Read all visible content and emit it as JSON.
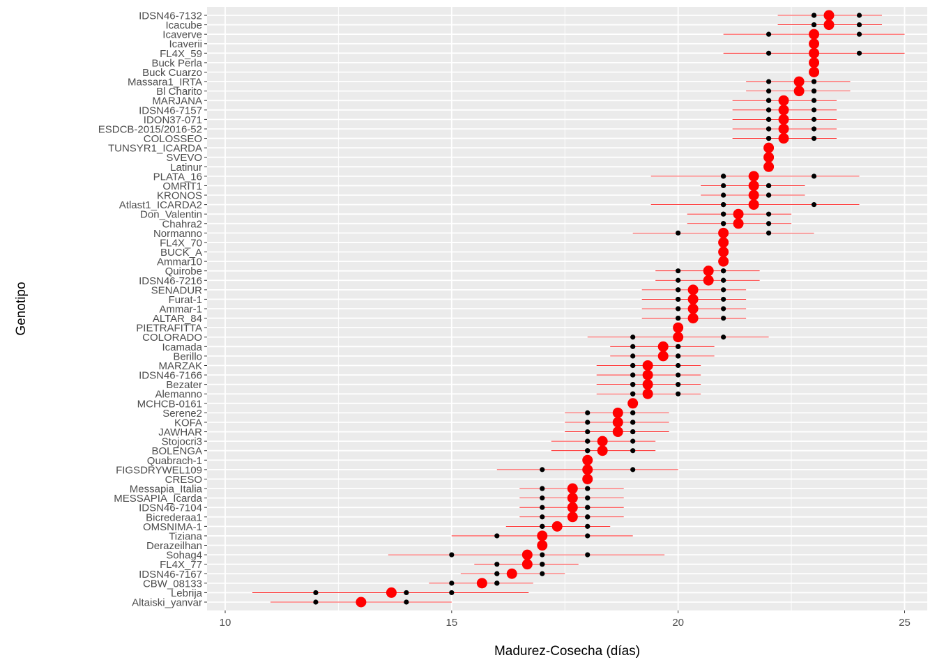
{
  "chart_data": {
    "type": "scatter",
    "xlabel": "Madurez-Cosecha (días)",
    "ylabel": "Genotipo",
    "xlim": [
      9.6,
      25.5
    ],
    "x_ticks": [
      10,
      15,
      20,
      25
    ],
    "grid": true,
    "colors": {
      "panel": "#ebebeb",
      "grid": "#ffffff",
      "mean": "#ff0000",
      "obs": "#000000",
      "errorbar": "#ff0000"
    },
    "series": [
      {
        "name": "",
        "points": [
          {
            "genotype": "IDSN46-7132",
            "mean": 23.33,
            "lo": 22.2,
            "hi": 24.5,
            "obs": [
              23,
              23,
              24
            ]
          },
          {
            "genotype": "Icacube",
            "mean": 23.33,
            "lo": 22.2,
            "hi": 24.5,
            "obs": [
              23,
              23,
              24
            ]
          },
          {
            "genotype": "Icaverve",
            "mean": 23.0,
            "lo": 21.0,
            "hi": 25.0,
            "obs": [
              22,
              23,
              24
            ]
          },
          {
            "genotype": "Icaverii",
            "mean": 23.0,
            "lo": 23.0,
            "hi": 23.0,
            "obs": [
              23,
              23,
              23
            ]
          },
          {
            "genotype": "FL4X_59",
            "mean": 23.0,
            "lo": 21.0,
            "hi": 25.0,
            "obs": [
              22,
              23,
              24
            ]
          },
          {
            "genotype": "Buck Perla",
            "mean": 23.0,
            "lo": 23.0,
            "hi": 23.0,
            "obs": [
              23,
              23,
              23
            ]
          },
          {
            "genotype": "Buck Cuarzo",
            "mean": 23.0,
            "lo": 23.0,
            "hi": 23.0,
            "obs": [
              23,
              23,
              23
            ]
          },
          {
            "genotype": "Massara1_IRTA",
            "mean": 22.67,
            "lo": 21.5,
            "hi": 23.8,
            "obs": [
              22,
              23,
              23
            ]
          },
          {
            "genotype": "Bl Charito",
            "mean": 22.67,
            "lo": 21.5,
            "hi": 23.8,
            "obs": [
              22,
              23,
              23
            ]
          },
          {
            "genotype": "MARJANA",
            "mean": 22.33,
            "lo": 21.2,
            "hi": 23.5,
            "obs": [
              22,
              22,
              23
            ]
          },
          {
            "genotype": "IDSN46-7157",
            "mean": 22.33,
            "lo": 21.2,
            "hi": 23.5,
            "obs": [
              22,
              22,
              23
            ]
          },
          {
            "genotype": "IDON37-071",
            "mean": 22.33,
            "lo": 21.2,
            "hi": 23.5,
            "obs": [
              22,
              22,
              23
            ]
          },
          {
            "genotype": "ESDCB-2015/2016-52",
            "mean": 22.33,
            "lo": 21.2,
            "hi": 23.5,
            "obs": [
              22,
              22,
              23
            ]
          },
          {
            "genotype": "COLOSSEO",
            "mean": 22.33,
            "lo": 21.2,
            "hi": 23.5,
            "obs": [
              22,
              22,
              23
            ]
          },
          {
            "genotype": "TUNSYR1_ICARDA",
            "mean": 22.0,
            "lo": 22.0,
            "hi": 22.0,
            "obs": [
              22,
              22,
              22
            ]
          },
          {
            "genotype": "SVEVO",
            "mean": 22.0,
            "lo": 22.0,
            "hi": 22.0,
            "obs": [
              22,
              22,
              22
            ]
          },
          {
            "genotype": "Latinur",
            "mean": 22.0,
            "lo": 22.0,
            "hi": 22.0,
            "obs": [
              22,
              22,
              22
            ]
          },
          {
            "genotype": "PLATA_16",
            "mean": 21.67,
            "lo": 19.4,
            "hi": 24.0,
            "obs": [
              21,
              21,
              23
            ]
          },
          {
            "genotype": "OMRIT1",
            "mean": 21.67,
            "lo": 20.5,
            "hi": 22.8,
            "obs": [
              21,
              22,
              22
            ]
          },
          {
            "genotype": "KRONOS",
            "mean": 21.67,
            "lo": 20.5,
            "hi": 22.8,
            "obs": [
              21,
              22,
              22
            ]
          },
          {
            "genotype": "Atlast1_ICARDA2",
            "mean": 21.67,
            "lo": 19.4,
            "hi": 24.0,
            "obs": [
              21,
              21,
              23
            ]
          },
          {
            "genotype": "Don_Valentin",
            "mean": 21.33,
            "lo": 20.2,
            "hi": 22.5,
            "obs": [
              21,
              21,
              22
            ]
          },
          {
            "genotype": "Chahra2",
            "mean": 21.33,
            "lo": 20.2,
            "hi": 22.5,
            "obs": [
              21,
              21,
              22
            ]
          },
          {
            "genotype": "Normanno",
            "mean": 21.0,
            "lo": 19.0,
            "hi": 23.0,
            "obs": [
              20,
              21,
              22
            ]
          },
          {
            "genotype": "FL4X_70",
            "mean": 21.0,
            "lo": 21.0,
            "hi": 21.0,
            "obs": [
              21,
              21,
              21
            ]
          },
          {
            "genotype": "BUCK_A",
            "mean": 21.0,
            "lo": 21.0,
            "hi": 21.0,
            "obs": [
              21,
              21,
              21
            ]
          },
          {
            "genotype": "Ammar10",
            "mean": 21.0,
            "lo": 21.0,
            "hi": 21.0,
            "obs": [
              21,
              21,
              21
            ]
          },
          {
            "genotype": "Quirobe",
            "mean": 20.67,
            "lo": 19.5,
            "hi": 21.8,
            "obs": [
              20,
              21,
              21
            ]
          },
          {
            "genotype": "IDSN46-7216",
            "mean": 20.67,
            "lo": 19.5,
            "hi": 21.8,
            "obs": [
              20,
              21,
              21
            ]
          },
          {
            "genotype": "SENADUR",
            "mean": 20.33,
            "lo": 19.2,
            "hi": 21.5,
            "obs": [
              20,
              20,
              21
            ]
          },
          {
            "genotype": "Furat-1",
            "mean": 20.33,
            "lo": 19.2,
            "hi": 21.5,
            "obs": [
              20,
              20,
              21
            ]
          },
          {
            "genotype": "Ammar-1",
            "mean": 20.33,
            "lo": 19.2,
            "hi": 21.5,
            "obs": [
              20,
              20,
              21
            ]
          },
          {
            "genotype": "ALTAR_84",
            "mean": 20.33,
            "lo": 19.2,
            "hi": 21.5,
            "obs": [
              20,
              20,
              21
            ]
          },
          {
            "genotype": "PIETRAFITTA",
            "mean": 20.0,
            "lo": 20.0,
            "hi": 20.0,
            "obs": [
              20,
              20,
              20
            ]
          },
          {
            "genotype": "COLORADO",
            "mean": 20.0,
            "lo": 18.0,
            "hi": 22.0,
            "obs": [
              19,
              20,
              21
            ]
          },
          {
            "genotype": "Icamada",
            "mean": 19.67,
            "lo": 18.5,
            "hi": 20.8,
            "obs": [
              19,
              20,
              20
            ]
          },
          {
            "genotype": "Berillo",
            "mean": 19.67,
            "lo": 18.5,
            "hi": 20.8,
            "obs": [
              19,
              20,
              20
            ]
          },
          {
            "genotype": "MARZAK",
            "mean": 19.33,
            "lo": 18.2,
            "hi": 20.5,
            "obs": [
              19,
              19,
              20
            ]
          },
          {
            "genotype": "IDSN46-7166",
            "mean": 19.33,
            "lo": 18.2,
            "hi": 20.5,
            "obs": [
              19,
              19,
              20
            ]
          },
          {
            "genotype": "Bezater",
            "mean": 19.33,
            "lo": 18.2,
            "hi": 20.5,
            "obs": [
              19,
              19,
              20
            ]
          },
          {
            "genotype": "Alemanno",
            "mean": 19.33,
            "lo": 18.2,
            "hi": 20.5,
            "obs": [
              19,
              19,
              20
            ]
          },
          {
            "genotype": "MCHCB-0161",
            "mean": 19.0,
            "lo": 19.0,
            "hi": 19.0,
            "obs": [
              19,
              19,
              19
            ]
          },
          {
            "genotype": "Serene2",
            "mean": 18.67,
            "lo": 17.5,
            "hi": 19.8,
            "obs": [
              18,
              19,
              19
            ]
          },
          {
            "genotype": "KOFA",
            "mean": 18.67,
            "lo": 17.5,
            "hi": 19.8,
            "obs": [
              18,
              19,
              19
            ]
          },
          {
            "genotype": "JAWHAR",
            "mean": 18.67,
            "lo": 17.5,
            "hi": 19.8,
            "obs": [
              18,
              19,
              19
            ]
          },
          {
            "genotype": "Stojocri3",
            "mean": 18.33,
            "lo": 17.2,
            "hi": 19.5,
            "obs": [
              18,
              18,
              19
            ]
          },
          {
            "genotype": "BOLENGA",
            "mean": 18.33,
            "lo": 17.2,
            "hi": 19.5,
            "obs": [
              18,
              18,
              19
            ]
          },
          {
            "genotype": "Quabrach-1",
            "mean": 18.0,
            "lo": 18.0,
            "hi": 18.0,
            "obs": [
              18,
              18,
              18
            ]
          },
          {
            "genotype": "FIGSDRYWEL109",
            "mean": 18.0,
            "lo": 16.0,
            "hi": 20.0,
            "obs": [
              17,
              18,
              19
            ]
          },
          {
            "genotype": "CRESO",
            "mean": 18.0,
            "lo": 18.0,
            "hi": 18.0,
            "obs": [
              18,
              18,
              18
            ]
          },
          {
            "genotype": "Messapia_Italia",
            "mean": 17.67,
            "lo": 16.5,
            "hi": 18.8,
            "obs": [
              17,
              18,
              18
            ]
          },
          {
            "genotype": "MESSAPIA_Icarda",
            "mean": 17.67,
            "lo": 16.5,
            "hi": 18.8,
            "obs": [
              17,
              18,
              18
            ]
          },
          {
            "genotype": "IDSN46-7104",
            "mean": 17.67,
            "lo": 16.5,
            "hi": 18.8,
            "obs": [
              17,
              18,
              18
            ]
          },
          {
            "genotype": "Bicrederaa1",
            "mean": 17.67,
            "lo": 16.5,
            "hi": 18.8,
            "obs": [
              17,
              18,
              18
            ]
          },
          {
            "genotype": "OMSNIMA-1",
            "mean": 17.33,
            "lo": 16.2,
            "hi": 18.5,
            "obs": [
              17,
              17,
              18
            ]
          },
          {
            "genotype": "Tiziana",
            "mean": 17.0,
            "lo": 15.0,
            "hi": 19.0,
            "obs": [
              16,
              17,
              18
            ]
          },
          {
            "genotype": "Derazeilhan",
            "mean": 17.0,
            "lo": 17.0,
            "hi": 17.0,
            "obs": [
              17,
              17,
              17
            ]
          },
          {
            "genotype": "Sohag4",
            "mean": 16.67,
            "lo": 13.6,
            "hi": 19.7,
            "obs": [
              15,
              17,
              18
            ]
          },
          {
            "genotype": "FL4X_77",
            "mean": 16.67,
            "lo": 15.5,
            "hi": 17.8,
            "obs": [
              16,
              17,
              17
            ]
          },
          {
            "genotype": "IDSN46-7167",
            "mean": 16.33,
            "lo": 15.2,
            "hi": 17.5,
            "obs": [
              16,
              16,
              17
            ]
          },
          {
            "genotype": "CBW_08133",
            "mean": 15.67,
            "lo": 14.5,
            "hi": 16.8,
            "obs": [
              15,
              16,
              16
            ]
          },
          {
            "genotype": "Lebrija",
            "mean": 13.67,
            "lo": 10.6,
            "hi": 16.7,
            "obs": [
              12,
              14,
              15
            ]
          },
          {
            "genotype": "Altaiski_yanvar",
            "mean": 13.0,
            "lo": 11.0,
            "hi": 15.0,
            "obs": [
              12,
              13,
              14
            ]
          }
        ]
      }
    ]
  }
}
